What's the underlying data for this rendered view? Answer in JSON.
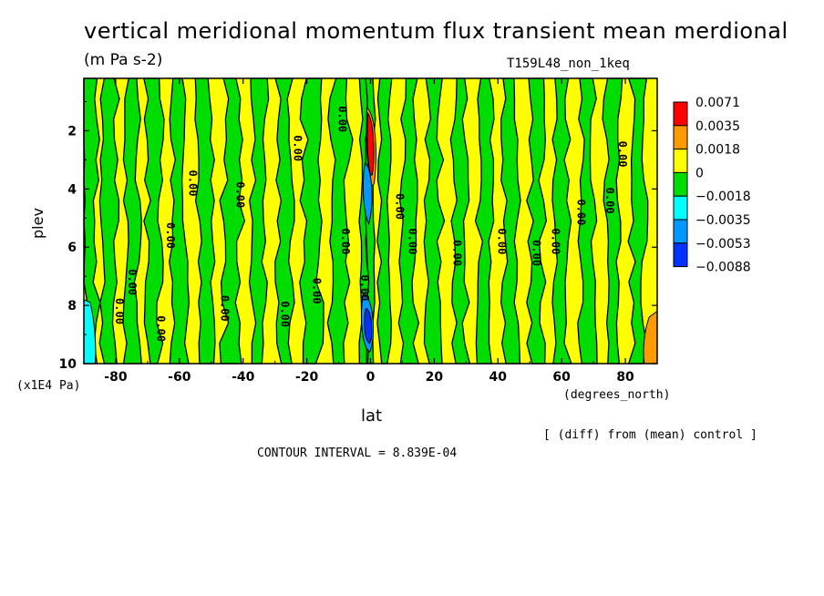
{
  "chart_data": {
    "type": "heatmap",
    "title": "vertical meridional momentum flux transient mean merdional",
    "units": "(m Pa s-2)",
    "experiment": "T159L48_non_1keq",
    "xlabel": "lat",
    "ylabel": "plev",
    "x_units": "(degrees_north)",
    "y_units": "(x1E4 Pa)",
    "x_ticks": [
      "-80",
      "-60",
      "-40",
      "-20",
      "0",
      "20",
      "40",
      "60",
      "80"
    ],
    "x_tick_values": [
      -80,
      -60,
      -40,
      -20,
      0,
      20,
      40,
      60,
      80
    ],
    "y_ticks": [
      "2",
      "4",
      "6",
      "8",
      "10"
    ],
    "y_tick_values": [
      2,
      4,
      6,
      8,
      10
    ],
    "xlim": [
      -90,
      90
    ],
    "ylim": [
      10,
      0.2
    ],
    "contour_interval_text": "CONTOUR INTERVAL = 8.839E-04",
    "note": "[ (diff) from (mean) control ]",
    "contour_label": "0.00",
    "colorbar": {
      "levels": [
        "0.0071",
        "0.0035",
        "0.0018",
        "0",
        "−0.0018",
        "−0.0035",
        "−0.0053",
        "−0.0088"
      ],
      "colors": [
        "#ff0000",
        "#ff9900",
        "#ffff00",
        "#00dd00",
        "#00ffff",
        "#0099ff",
        "#0033ff"
      ]
    },
    "band_data": {
      "boundaries": [
        -90,
        -86,
        -84,
        -80,
        -77,
        -73,
        -70,
        -66,
        -62,
        -58,
        -54,
        -50,
        -46,
        -41,
        -37,
        -33,
        -29,
        -25,
        -21,
        -16,
        -12,
        -7,
        -3,
        -1,
        1,
        3,
        6,
        10,
        14,
        18,
        22,
        26,
        30,
        34,
        38,
        42,
        46,
        50,
        54,
        58,
        62,
        66,
        70,
        74,
        78,
        82,
        86,
        90
      ],
      "signs": [
        "neg",
        "pos",
        "neg",
        "pos",
        "neg",
        "pos",
        "neg",
        "pos",
        "neg",
        "pos",
        "neg",
        "pos",
        "neg",
        "pos",
        "neg",
        "pos",
        "neg",
        "pos",
        "neg",
        "pos",
        "neg",
        "pos",
        "strong",
        "strong",
        "pos",
        "neg",
        "pos",
        "neg",
        "pos",
        "neg",
        "pos",
        "neg",
        "pos",
        "neg",
        "pos",
        "neg",
        "pos",
        "neg",
        "pos",
        "neg",
        "pos",
        "neg",
        "pos",
        "neg",
        "pos",
        "neg",
        "pos"
      ]
    }
  }
}
